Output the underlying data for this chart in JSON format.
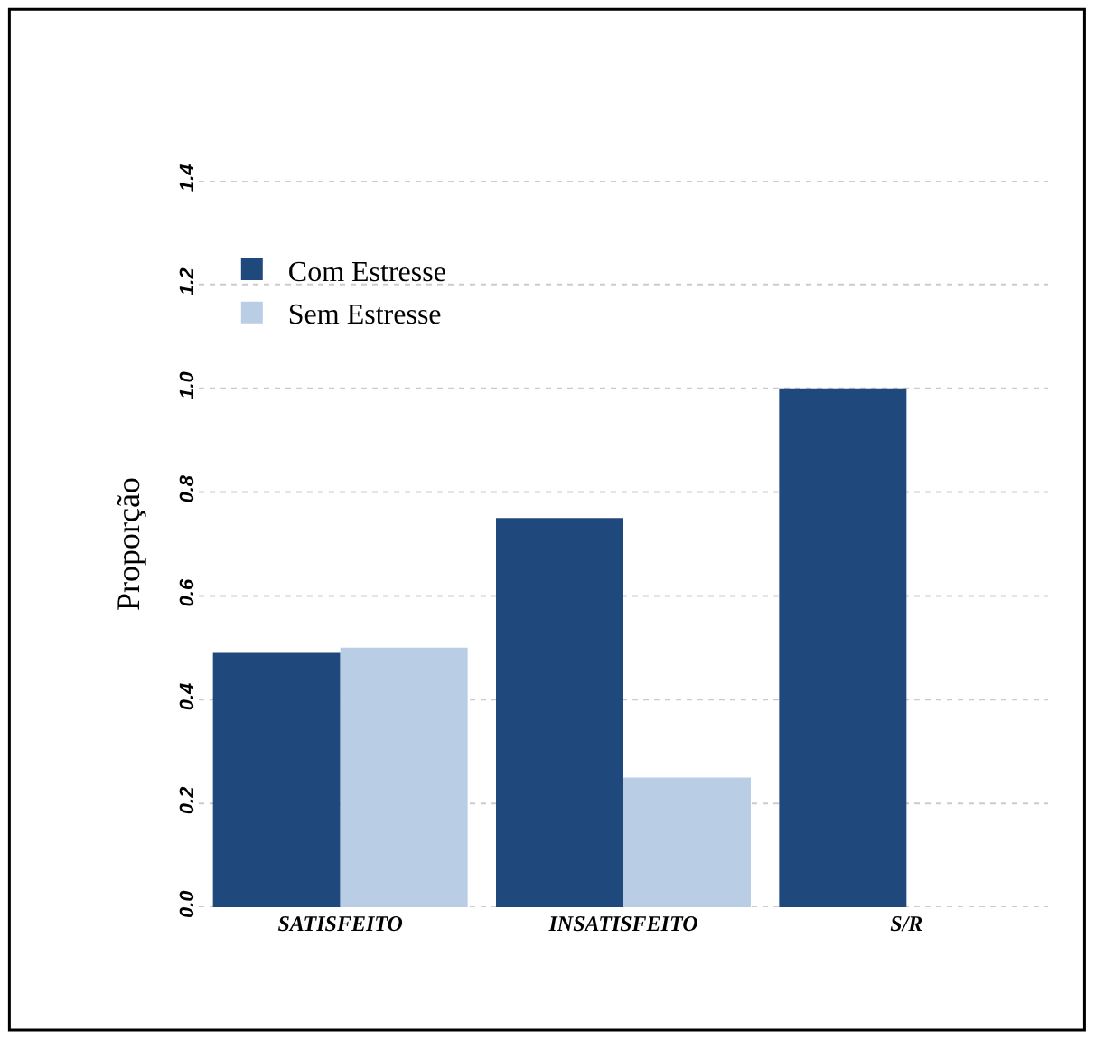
{
  "chart_data": {
    "type": "bar",
    "ylabel": "Proporção",
    "categories": [
      "SATISFEITO",
      "INSATISFEITO",
      "S/R"
    ],
    "series": [
      {
        "name": "Com Estresse",
        "color": "#1f497d",
        "values": [
          0.49,
          0.75,
          1.0
        ]
      },
      {
        "name": "Sem Estresse",
        "color": "#b9cde5",
        "values": [
          0.5,
          0.25,
          0.0
        ]
      }
    ],
    "ylim": [
      0,
      1.4
    ],
    "yticks": [
      {
        "value": 0,
        "label": "0.0"
      },
      {
        "value": 0.2,
        "label": "0.2"
      },
      {
        "value": 0.4,
        "label": "0.4"
      },
      {
        "value": 0.6,
        "label": "0.6"
      },
      {
        "value": 0.8,
        "label": "0.8"
      },
      {
        "value": 1.0,
        "label": "1.0"
      },
      {
        "value": 1.2,
        "label": "1.2"
      },
      {
        "value": 1.4,
        "label": "1.4"
      }
    ],
    "grid": "y",
    "legend": "top left"
  }
}
